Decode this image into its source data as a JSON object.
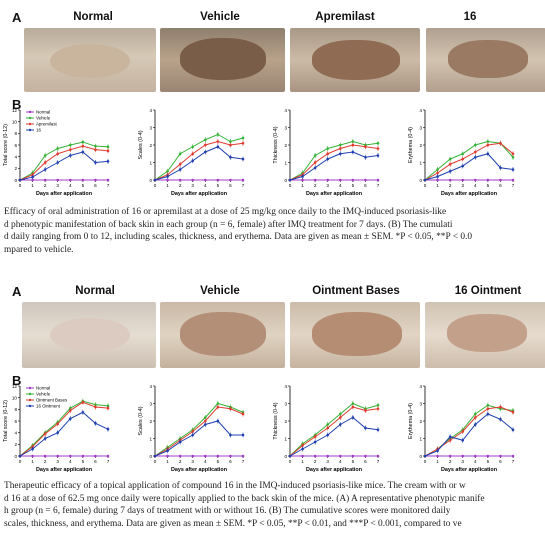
{
  "figure1": {
    "panel_a": "A",
    "panel_b": "B",
    "photo_titles": [
      "Normal",
      "Vehicle",
      "Apremilast",
      "16"
    ],
    "legend": [
      "Normal",
      "Vehicle",
      "Apremilast",
      "16"
    ],
    "caption_lines": [
      "Efficacy of oral administration of 16 or apremilast at a dose of 25 mg/kg once daily to the IMQ-induced psoriasis-like",
      "d phenotypic manifestation of back skin in each group (n = 6, female) after IMQ treatment for 7 days. (B) The cumulati",
      "d daily ranging from 0 to 12, including scales, thickness, and erythema. Data are given as mean ± SEM. *P < 0.05, **P < 0.0",
      "mpared to vehicle."
    ]
  },
  "figure2": {
    "panel_a": "A",
    "panel_b": "B",
    "photo_titles": [
      "Normal",
      "Vehicle",
      "Ointment Bases",
      "16 Ointment"
    ],
    "legend": [
      "Normal",
      "Vehicle",
      "Ointment Bases",
      "16 Ointment"
    ],
    "caption_lines": [
      "Therapeutic efficacy of a topical application of compound 16 in the IMQ-induced psoriasis-like mice. The cream with or w",
      "d 16 at a dose of 62.5 mg once daily were topically applied to the back skin of the mice. (A) A representative phenotypic manife",
      "h group (n = 6, female) during 7 days of treatment with or without 16. (B) The cumulative scores were monitored daily",
      "scales, thickness, and erythema. Data are given as mean ± SEM. *P < 0.05, **P < 0.01, and ***P < 0.001, compared to ve"
    ]
  },
  "colors": {
    "normal": "#a238c8",
    "vehicle": "#34b334",
    "treatment_a": "#e03a2f",
    "treatment_b": "#1f3fb0"
  },
  "chart_data": [
    {
      "figure": 1,
      "type": "line",
      "xlabel": "Days after application",
      "ylabel": "Total score (0-12)",
      "ylim": [
        0,
        12
      ],
      "yticks": [
        0,
        2,
        4,
        6,
        8,
        10,
        12
      ],
      "x": [
        0,
        1,
        2,
        3,
        4,
        5,
        6,
        7
      ],
      "series": [
        {
          "name": "Normal",
          "values": [
            0,
            0,
            0,
            0,
            0,
            0,
            0,
            0
          ]
        },
        {
          "name": "Vehicle",
          "values": [
            0,
            1.2,
            4.2,
            5.4,
            6.0,
            6.5,
            5.8,
            5.7
          ]
        },
        {
          "name": "Apremilast",
          "values": [
            0,
            0.9,
            3.0,
            4.5,
            5.2,
            5.8,
            5.2,
            5.0
          ]
        },
        {
          "name": "16",
          "values": [
            0,
            0.5,
            1.8,
            3.0,
            4.2,
            4.8,
            3.0,
            3.2
          ]
        }
      ]
    },
    {
      "figure": 1,
      "type": "line",
      "xlabel": "Days after application",
      "ylabel": "Scales (0-4)",
      "ylim": [
        0,
        4
      ],
      "yticks": [
        0,
        1,
        2,
        3,
        4
      ],
      "x": [
        0,
        1,
        2,
        3,
        4,
        5,
        6,
        7
      ],
      "series": [
        {
          "name": "Normal",
          "values": [
            0,
            0,
            0,
            0,
            0,
            0,
            0,
            0
          ]
        },
        {
          "name": "Vehicle",
          "values": [
            0,
            0.5,
            1.5,
            1.9,
            2.3,
            2.6,
            2.2,
            2.4
          ]
        },
        {
          "name": "Apremilast",
          "values": [
            0,
            0.3,
            0.9,
            1.5,
            2.0,
            2.2,
            2.0,
            2.1
          ]
        },
        {
          "name": "16",
          "values": [
            0,
            0.2,
            0.6,
            1.1,
            1.6,
            1.9,
            1.3,
            1.2
          ]
        }
      ]
    },
    {
      "figure": 1,
      "type": "line",
      "xlabel": "Days after application",
      "ylabel": "Thickness (0-4)",
      "ylim": [
        0,
        4
      ],
      "yticks": [
        0,
        1,
        2,
        3,
        4
      ],
      "x": [
        0,
        1,
        2,
        3,
        4,
        5,
        6,
        7
      ],
      "series": [
        {
          "name": "Normal",
          "values": [
            0,
            0,
            0,
            0,
            0,
            0,
            0,
            0
          ]
        },
        {
          "name": "Vehicle",
          "values": [
            0,
            0.4,
            1.4,
            1.8,
            2.0,
            2.2,
            2.0,
            2.1
          ]
        },
        {
          "name": "Apremilast",
          "values": [
            0,
            0.3,
            1.0,
            1.5,
            1.8,
            2.0,
            1.9,
            1.8
          ]
        },
        {
          "name": "16",
          "values": [
            0,
            0.2,
            0.7,
            1.2,
            1.5,
            1.6,
            1.3,
            1.4
          ]
        }
      ]
    },
    {
      "figure": 1,
      "type": "line",
      "xlabel": "Days after application",
      "ylabel": "Erythema (0-4)",
      "ylim": [
        0,
        4
      ],
      "yticks": [
        0,
        1,
        2,
        3,
        4
      ],
      "x": [
        0,
        1,
        2,
        3,
        4,
        5,
        6,
        7
      ],
      "series": [
        {
          "name": "Normal",
          "values": [
            0,
            0,
            0,
            0,
            0,
            0,
            0,
            0
          ]
        },
        {
          "name": "Vehicle",
          "values": [
            0,
            0.6,
            1.2,
            1.5,
            2.0,
            2.2,
            2.1,
            1.3
          ]
        },
        {
          "name": "Apremilast",
          "values": [
            0,
            0.4,
            0.9,
            1.2,
            1.6,
            2.0,
            2.1,
            1.5
          ]
        },
        {
          "name": "16",
          "values": [
            0,
            0.2,
            0.5,
            0.8,
            1.3,
            1.5,
            0.7,
            0.6
          ]
        }
      ]
    },
    {
      "figure": 2,
      "type": "line",
      "xlabel": "Days after application",
      "ylabel": "Total score (0-12)",
      "ylim": [
        0,
        12
      ],
      "yticks": [
        0,
        2,
        4,
        6,
        8,
        10,
        12
      ],
      "x": [
        0,
        1,
        2,
        3,
        4,
        5,
        6,
        7
      ],
      "series": [
        {
          "name": "Normal",
          "values": [
            0,
            0,
            0,
            0,
            0,
            0,
            0,
            0
          ]
        },
        {
          "name": "Vehicle",
          "values": [
            0,
            1.8,
            4.0,
            5.8,
            8.2,
            9.4,
            8.8,
            8.6
          ]
        },
        {
          "name": "Ointment Bases",
          "values": [
            0,
            1.6,
            3.8,
            5.5,
            7.8,
            9.2,
            8.4,
            8.2
          ]
        },
        {
          "name": "16 Ointment",
          "values": [
            0,
            1.2,
            3.0,
            4.0,
            6.4,
            7.5,
            5.6,
            4.6
          ]
        }
      ]
    },
    {
      "figure": 2,
      "type": "line",
      "xlabel": "Days after application",
      "ylabel": "Scales (0-4)",
      "ylim": [
        0,
        4
      ],
      "yticks": [
        0,
        1,
        2,
        3,
        4
      ],
      "x": [
        0,
        1,
        2,
        3,
        4,
        5,
        6,
        7
      ],
      "series": [
        {
          "name": "Normal",
          "values": [
            0,
            0,
            0,
            0,
            0,
            0,
            0,
            0
          ]
        },
        {
          "name": "Vehicle",
          "values": [
            0,
            0.5,
            1.0,
            1.5,
            2.2,
            3.0,
            2.8,
            2.5
          ]
        },
        {
          "name": "Ointment Bases",
          "values": [
            0,
            0.4,
            0.9,
            1.4,
            2.0,
            2.8,
            2.7,
            2.4
          ]
        },
        {
          "name": "16 Ointment",
          "values": [
            0,
            0.3,
            0.8,
            1.2,
            1.8,
            2.0,
            1.2,
            1.2
          ]
        }
      ]
    },
    {
      "figure": 2,
      "type": "line",
      "xlabel": "Days after application",
      "ylabel": "Thickness (0-4)",
      "ylim": [
        0,
        4
      ],
      "yticks": [
        0,
        1,
        2,
        3,
        4
      ],
      "x": [
        0,
        1,
        2,
        3,
        4,
        5,
        6,
        7
      ],
      "series": [
        {
          "name": "Normal",
          "values": [
            0,
            0,
            0,
            0,
            0,
            0,
            0,
            0
          ]
        },
        {
          "name": "Vehicle",
          "values": [
            0,
            0.7,
            1.2,
            1.8,
            2.4,
            3.0,
            2.7,
            2.9
          ]
        },
        {
          "name": "Ointment Bases",
          "values": [
            0,
            0.6,
            1.1,
            1.6,
            2.2,
            2.8,
            2.6,
            2.7
          ]
        },
        {
          "name": "16 Ointment",
          "values": [
            0,
            0.4,
            0.8,
            1.2,
            1.8,
            2.2,
            1.6,
            1.5
          ]
        }
      ]
    },
    {
      "figure": 2,
      "type": "line",
      "xlabel": "Days after application",
      "ylabel": "Erythema (0-4)",
      "ylim": [
        0,
        4
      ],
      "yticks": [
        0,
        1,
        2,
        3,
        4
      ],
      "x": [
        0,
        1,
        2,
        3,
        4,
        5,
        6,
        7
      ],
      "series": [
        {
          "name": "Normal",
          "values": [
            0,
            0,
            0,
            0,
            0,
            0,
            0,
            0
          ]
        },
        {
          "name": "Vehicle",
          "values": [
            0,
            0.4,
            1.0,
            1.5,
            2.4,
            2.9,
            2.7,
            2.6
          ]
        },
        {
          "name": "Ointment Bases",
          "values": [
            0,
            0.4,
            0.9,
            1.4,
            2.2,
            2.7,
            2.8,
            2.5
          ]
        },
        {
          "name": "16 Ointment",
          "values": [
            0,
            0.3,
            1.1,
            0.9,
            1.8,
            2.4,
            2.1,
            1.5
          ]
        }
      ]
    }
  ]
}
